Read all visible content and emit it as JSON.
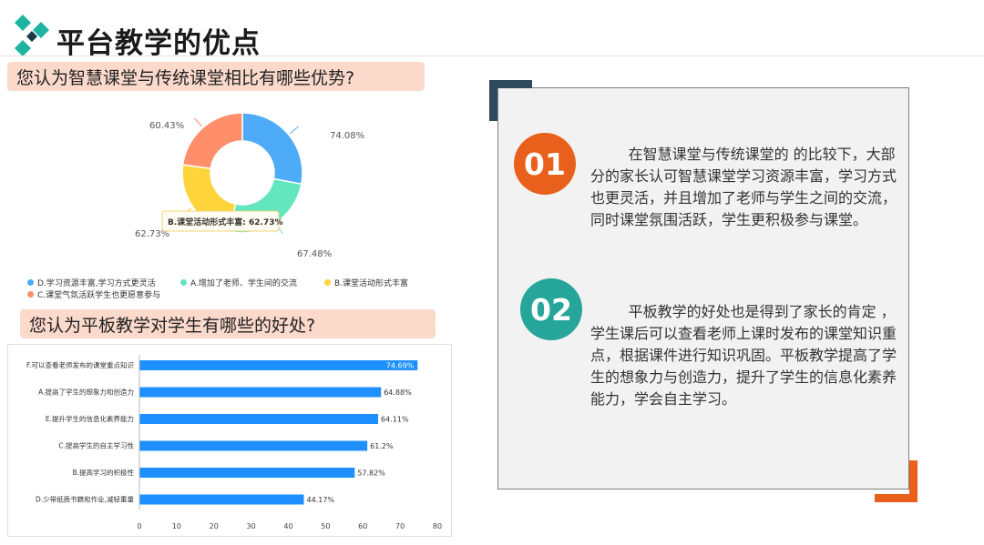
{
  "header": {
    "title": "平台教学的优点"
  },
  "questions": {
    "q1": "您认为智慧课堂与传统课堂相比有哪些优势?",
    "q2": "您认为平板教学对学生有哪些的好处?"
  },
  "colors": {
    "blue": "#4dabf7",
    "teal": "#63e6be",
    "yellow": "#ffd43b",
    "salmon": "#ff8f6b",
    "bar": "#1e90ff",
    "orange": "#e8601c",
    "green": "#26a69a",
    "navy": "#2f4a5a"
  },
  "chart_data": [
    {
      "type": "pie",
      "title": "",
      "slices": [
        {
          "label": "D.学习资源丰富,学习方式更灵活",
          "value": 74.08,
          "value_label": "74.08%",
          "color": "#4dabf7"
        },
        {
          "label": "A.增加了老师、学生间的交流",
          "value": 67.48,
          "value_label": "67.48%",
          "color": "#63e6be"
        },
        {
          "label": "B.课堂活动形式丰富",
          "value": 62.73,
          "value_label": "62.73%",
          "color": "#ffd43b"
        },
        {
          "label": "C.课堂气氛活跃学生也更愿意参与",
          "value": 60.43,
          "value_label": "60.43%",
          "color": "#ff8f6b"
        }
      ],
      "tooltip": "B.课堂活动形式丰富: 62.73%",
      "legend_placement": "bottom"
    },
    {
      "type": "bar",
      "orientation": "horizontal",
      "title": "",
      "categories": [
        "F.可以查看老师发布的课堂重点知识",
        "A.提高了学生的想象力和创造力",
        "E.提升学生的信息化素养能力",
        "C.提高学生的自主学习性",
        "B.提高学习的积极性",
        "D.少带纸质书籍和作业,减轻重量"
      ],
      "values": [
        74.69,
        64.88,
        64.11,
        61.2,
        57.82,
        44.17
      ],
      "value_labels": [
        "74.69%",
        "64.88%",
        "64.11%",
        "61.2%",
        "57.82%",
        "44.17%"
      ],
      "xlim": [
        0,
        80
      ],
      "x_ticks": [
        0,
        10,
        20,
        30,
        40,
        50,
        60,
        70,
        80
      ],
      "grid": false
    }
  ],
  "cards": [
    {
      "number": "01",
      "text": "在智慧课堂与传统课堂的 的比较下，大部分的家长认可智慧课堂学习资源丰富，学习方式也更灵活，并且增加了老师与学生之间的交流，同时课堂氛围活跃，学生更积极参与课堂。"
    },
    {
      "number": "02",
      "text": "平板教学的好处也是得到了家长的肯定 ，学生课后可以查看老师上课时发布的课堂知识重点，根据课件进行知识巩固。平板教学提高了学生的想象力与创造力，提升了学生的信息化素养能力，学会自主学习。"
    }
  ]
}
